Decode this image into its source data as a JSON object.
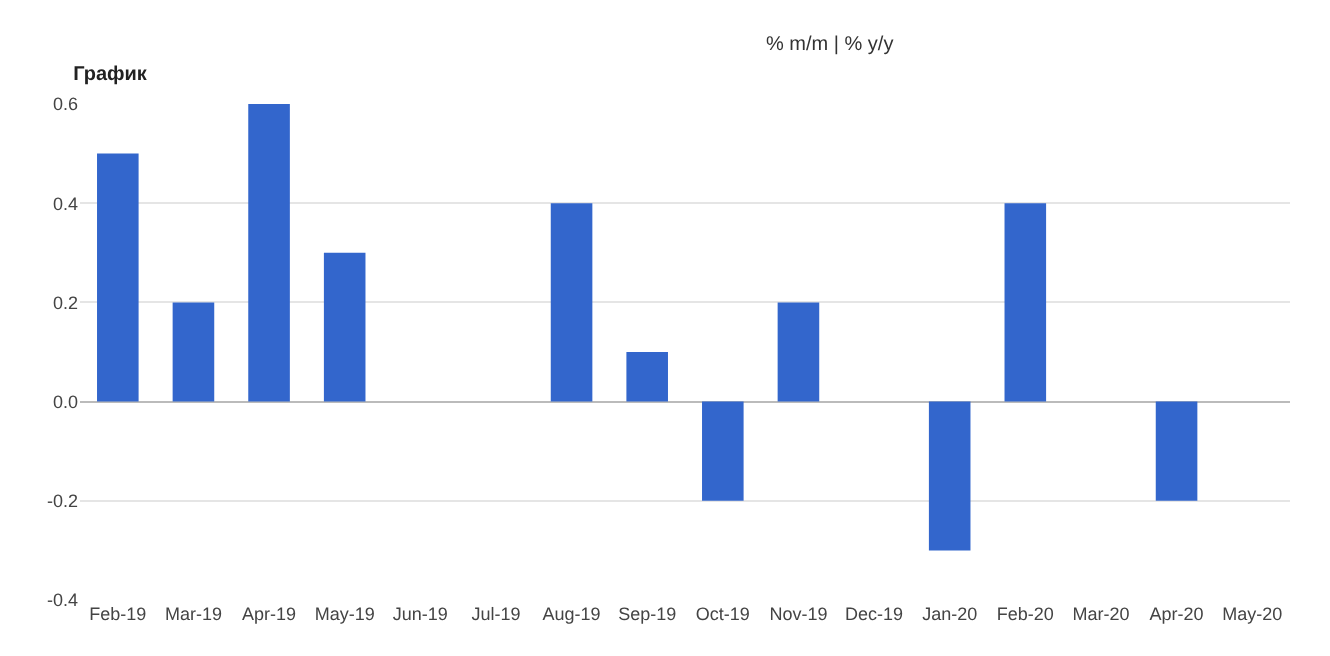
{
  "chart_data": {
    "type": "bar",
    "title": "График",
    "subtitle": "% m/m | % y/y",
    "categories": [
      "Feb-19",
      "Mar-19",
      "Apr-19",
      "May-19",
      "Jun-19",
      "Jul-19",
      "Aug-19",
      "Sep-19",
      "Oct-19",
      "Nov-19",
      "Dec-19",
      "Jan-20",
      "Feb-20",
      "Mar-20",
      "Apr-20",
      "May-20"
    ],
    "values": [
      0.5,
      0.2,
      0.6,
      0.3,
      0,
      0,
      0.4,
      0.1,
      -0.2,
      0.2,
      0,
      -0.3,
      0.4,
      0,
      -0.2,
      0
    ],
    "color": "#3366cc",
    "ylim": [
      -0.4,
      0.6
    ],
    "yticks": [
      -0.4,
      -0.2,
      {
        "value": 0,
        "label": "0.0"
      },
      0.2,
      0.4,
      0.6
    ],
    "grid": "y"
  }
}
